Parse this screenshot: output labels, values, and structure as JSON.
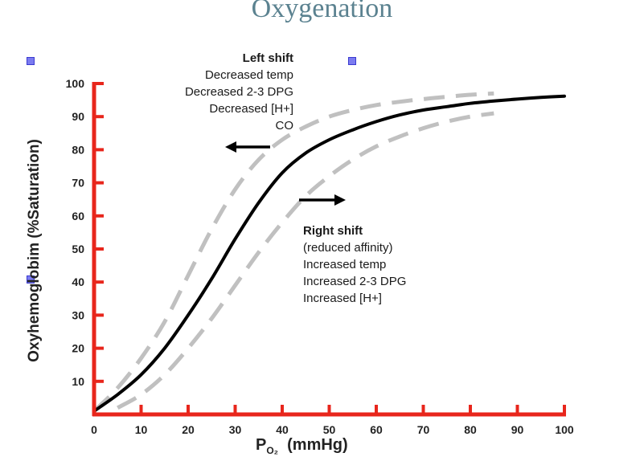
{
  "slide": {
    "title": "Oxygenation"
  },
  "chart_data": {
    "type": "line",
    "xlabel_symbol": "P",
    "xlabel_sub": "O₂",
    "xlabel_units": "(mmHg)",
    "ylabel": "Oxyhemoglobim (%Saturation)",
    "xlim": [
      0,
      100
    ],
    "ylim": [
      0,
      100
    ],
    "x_ticks": [
      0,
      10,
      20,
      30,
      40,
      50,
      60,
      70,
      80,
      90,
      100
    ],
    "y_ticks": [
      10,
      20,
      30,
      40,
      50,
      60,
      70,
      80,
      90,
      100
    ],
    "grid": false,
    "series": [
      {
        "style": "solid",
        "color": "#000000",
        "x": [
          0,
          5,
          10,
          15,
          20,
          25,
          30,
          35,
          40,
          45,
          50,
          55,
          60,
          65,
          70,
          75,
          80,
          85,
          90,
          95,
          100
        ],
        "y": [
          1,
          6,
          12,
          20,
          30,
          41,
          53,
          64,
          73,
          79,
          83,
          86,
          88.5,
          90.5,
          92,
          93,
          94,
          94.7,
          95.3,
          95.8,
          96.2
        ]
      },
      {
        "style": "dashed",
        "color": "#c0c0c0",
        "x": [
          0,
          5,
          10,
          15,
          20,
          25,
          30,
          35,
          40,
          45,
          50,
          55,
          60,
          65,
          70,
          75,
          80,
          85
        ],
        "y": [
          1,
          8,
          17,
          28,
          42,
          56,
          68,
          77,
          83,
          87,
          90,
          92,
          93.5,
          94.5,
          95.3,
          96,
          96.6,
          97
        ]
      },
      {
        "style": "dashed",
        "color": "#c0c0c0",
        "x": [
          5,
          10,
          15,
          20,
          25,
          30,
          35,
          40,
          45,
          50,
          55,
          60,
          65,
          70,
          75,
          80,
          85
        ],
        "y": [
          2,
          6,
          12,
          20,
          29,
          39,
          49,
          58,
          66,
          72,
          77,
          81,
          84,
          86.5,
          88.5,
          90,
          91
        ]
      }
    ],
    "annotations": {
      "left_shift": {
        "title": "Left shift",
        "lines": [
          "Decreased temp",
          "Decreased 2-3 DPG",
          "Decreased [H+]",
          "CO"
        ],
        "arrow": "left"
      },
      "right_shift": {
        "title": "Right shift",
        "lines": [
          "(reduced affinity)",
          "Increased temp",
          "Increased 2-3 DPG",
          "Increased [H+]"
        ],
        "arrow": "right"
      }
    },
    "colors": {
      "axis": "#e8261c",
      "curve": "#000000",
      "shift_curves": "#c0c0c0"
    }
  }
}
